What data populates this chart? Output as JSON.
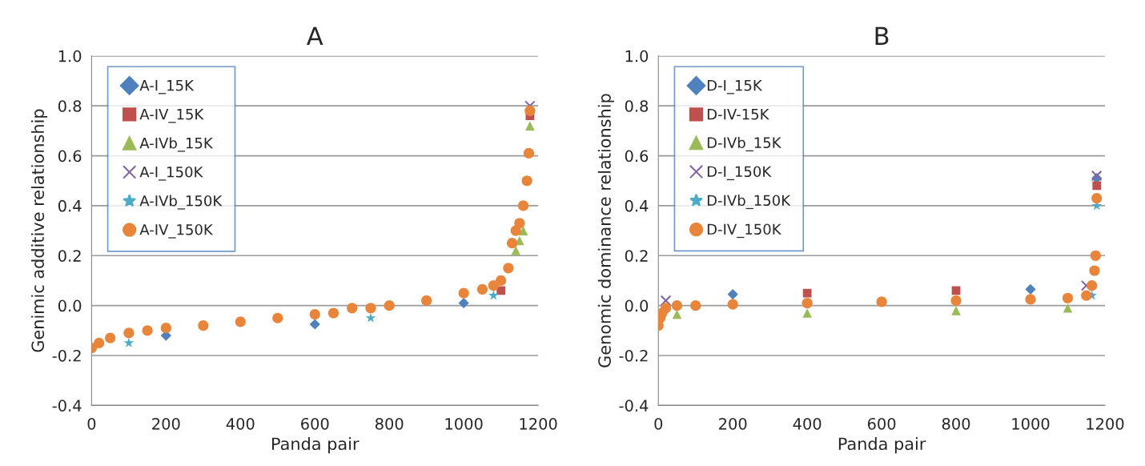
{
  "chart_data": [
    {
      "type": "scatter",
      "title": "A",
      "xlabel": "Panda pair",
      "ylabel": "Genimic additive relationship",
      "x": [
        0,
        20,
        50,
        100,
        150,
        200,
        300,
        400,
        500,
        600,
        650,
        700,
        750,
        800,
        900,
        1000,
        1050,
        1080,
        1100,
        1120,
        1130,
        1140,
        1150,
        1160,
        1170,
        1175,
        1178
      ],
      "series": [
        {
          "name": "A-I_15K",
          "color": "#4f81bd",
          "marker": "diamond",
          "values": [
            null,
            null,
            null,
            null,
            null,
            -0.12,
            null,
            null,
            null,
            -0.075,
            null,
            null,
            null,
            null,
            null,
            0.01,
            null,
            null,
            null,
            null,
            null,
            null,
            null,
            null,
            null,
            null,
            null
          ]
        },
        {
          "name": "A-IV_15K",
          "color": "#c0504d",
          "marker": "square",
          "values": [
            null,
            null,
            null,
            null,
            null,
            null,
            null,
            null,
            null,
            null,
            null,
            null,
            null,
            null,
            null,
            null,
            null,
            null,
            0.06,
            null,
            null,
            null,
            null,
            null,
            null,
            null,
            0.76
          ]
        },
        {
          "name": "A-IVb_15K",
          "color": "#9bbb59",
          "marker": "triangle",
          "values": [
            null,
            null,
            null,
            null,
            null,
            null,
            null,
            null,
            null,
            null,
            null,
            null,
            null,
            null,
            null,
            null,
            null,
            null,
            null,
            null,
            null,
            0.22,
            0.26,
            0.3,
            null,
            null,
            0.72
          ]
        },
        {
          "name": "A-I_150K",
          "color": "#8064a2",
          "marker": "cross",
          "values": [
            null,
            null,
            null,
            null,
            null,
            null,
            null,
            null,
            null,
            null,
            null,
            null,
            null,
            null,
            null,
            null,
            null,
            null,
            null,
            null,
            null,
            null,
            null,
            null,
            null,
            null,
            0.8
          ]
        },
        {
          "name": "A-IVb_150K",
          "color": "#4bacc6",
          "marker": "star",
          "values": [
            null,
            null,
            null,
            -0.15,
            null,
            null,
            null,
            null,
            null,
            null,
            null,
            null,
            -0.05,
            null,
            null,
            null,
            null,
            0.04,
            null,
            null,
            null,
            null,
            null,
            null,
            null,
            null,
            null
          ]
        },
        {
          "name": "A-IV_150K",
          "color": "#e8853a",
          "marker": "circle",
          "values": [
            -0.17,
            -0.15,
            -0.13,
            -0.11,
            -0.1,
            -0.09,
            -0.08,
            -0.065,
            -0.05,
            -0.035,
            -0.03,
            -0.01,
            -0.01,
            0.0,
            0.02,
            0.05,
            0.065,
            0.08,
            0.1,
            0.15,
            0.25,
            0.3,
            0.33,
            0.4,
            0.5,
            0.61,
            0.78
          ]
        }
      ],
      "xlim": [
        0,
        1200
      ],
      "xticks": [
        0,
        200,
        400,
        600,
        800,
        1000,
        1200
      ],
      "ylim": [
        -0.4,
        1.0
      ],
      "yticks": [
        {
          "value": -0.4,
          "label": "-0.4"
        },
        {
          "value": -0.2,
          "label": "-0.2"
        },
        {
          "value": 0,
          "label": "0.0"
        },
        {
          "value": 0.2,
          "label": "0.2"
        },
        {
          "value": 0.4,
          "label": "0.4"
        },
        {
          "value": 0.6,
          "label": "0.6"
        },
        {
          "value": 0.8,
          "label": "0.8"
        },
        {
          "value": 1.0,
          "label": "1.0"
        }
      ],
      "grid": "y",
      "legend": "top left"
    },
    {
      "type": "scatter",
      "title": "B",
      "xlabel": "Panda pair",
      "ylabel": "Genomic dominance relationship",
      "x": [
        0,
        5,
        10,
        20,
        50,
        100,
        200,
        400,
        600,
        800,
        1000,
        1100,
        1150,
        1165,
        1172,
        1175,
        1178
      ],
      "series": [
        {
          "name": "D-I_15K",
          "color": "#4f81bd",
          "marker": "diamond",
          "values": [
            null,
            null,
            null,
            null,
            null,
            null,
            0.045,
            null,
            null,
            null,
            0.065,
            null,
            null,
            null,
            null,
            null,
            0.51
          ]
        },
        {
          "name": "D-IV-15K",
          "color": "#c0504d",
          "marker": "square",
          "values": [
            null,
            null,
            null,
            null,
            null,
            null,
            null,
            0.05,
            null,
            0.06,
            null,
            null,
            null,
            null,
            null,
            null,
            0.48
          ]
        },
        {
          "name": "D-IVb_15K",
          "color": "#9bbb59",
          "marker": "triangle",
          "values": [
            null,
            null,
            null,
            null,
            -0.035,
            null,
            null,
            -0.03,
            null,
            -0.02,
            null,
            -0.01,
            null,
            null,
            null,
            null,
            null
          ]
        },
        {
          "name": "D-I_150K",
          "color": "#8064a2",
          "marker": "cross",
          "values": [
            null,
            null,
            null,
            0.02,
            null,
            null,
            null,
            null,
            null,
            null,
            null,
            null,
            0.08,
            null,
            null,
            null,
            0.52
          ]
        },
        {
          "name": "D-IVb_150K",
          "color": "#4bacc6",
          "marker": "star",
          "values": [
            null,
            null,
            null,
            null,
            null,
            null,
            null,
            null,
            null,
            null,
            null,
            null,
            null,
            0.04,
            null,
            null,
            0.4
          ]
        },
        {
          "name": "D-IV_150K",
          "color": "#e8853a",
          "marker": "circle",
          "values": [
            -0.08,
            -0.05,
            -0.03,
            -0.01,
            0.0,
            0.0,
            0.005,
            0.01,
            0.015,
            0.02,
            0.025,
            0.03,
            0.04,
            0.08,
            0.14,
            0.2,
            0.43
          ]
        }
      ],
      "xlim": [
        0,
        1200
      ],
      "xticks": [
        0,
        200,
        400,
        600,
        800,
        1000,
        1200
      ],
      "ylim": [
        -0.4,
        1.0
      ],
      "yticks": [
        {
          "value": -0.4,
          "label": "-0.4"
        },
        {
          "value": -0.2,
          "label": "-0.2"
        },
        {
          "value": 0,
          "label": "0.0"
        },
        {
          "value": 0.2,
          "label": "0.2"
        },
        {
          "value": 0.4,
          "label": "0.4"
        },
        {
          "value": 0.6,
          "label": "0.6"
        },
        {
          "value": 0.8,
          "label": "0.8"
        },
        {
          "value": 1.0,
          "label": "1.0"
        }
      ],
      "grid": "y",
      "legend": "top left"
    }
  ]
}
